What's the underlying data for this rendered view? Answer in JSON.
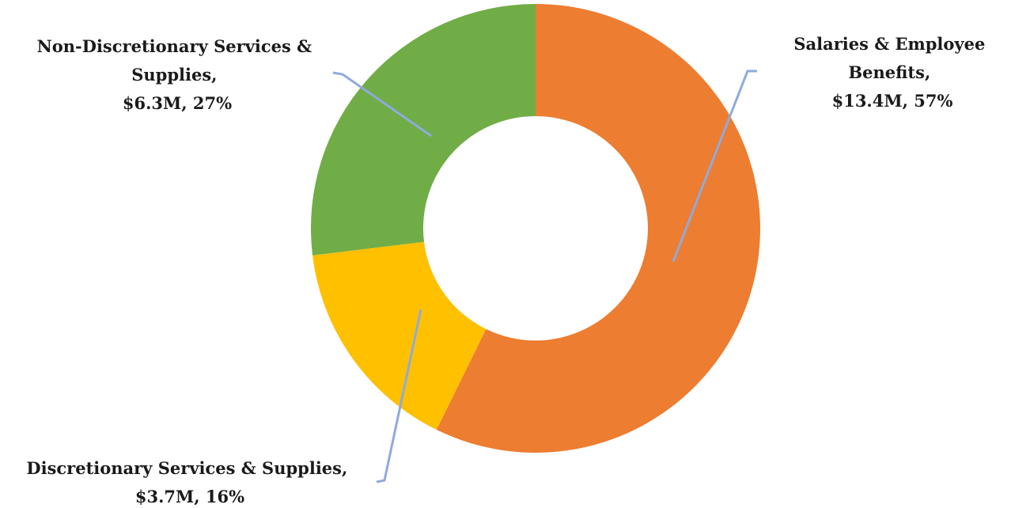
{
  "chart_data": {
    "type": "pie",
    "title": "",
    "slices": [
      {
        "label": "Salaries & Employee Benefits",
        "label_lines": [
          "Salaries & Employee",
          "Benefits,",
          "$13.4M, 57%"
        ],
        "value": 13.4,
        "percent": 57,
        "color": "#ED7D31"
      },
      {
        "label": "Discretionary Services & Supplies",
        "label_lines": [
          "Discretionary Services & Supplies,",
          "$3.7M, 16%"
        ],
        "value": 3.7,
        "percent": 16,
        "color": "#FFC000"
      },
      {
        "label": "Non-Discretionary Services & Supplies",
        "label_lines": [
          "Non-Discretionary Services &",
          "Supplies,",
          "$6.3M, 27%"
        ],
        "value": 6.3,
        "percent": 27,
        "color": "#70AD47"
      }
    ],
    "leader_line_color": "#8FAADC"
  }
}
